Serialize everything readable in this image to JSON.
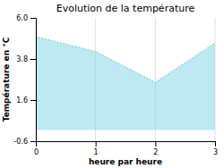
{
  "chart_data": {
    "type": "area",
    "title": "Evolution de la température",
    "x_label": "heure par heure",
    "y_label": "Température en °C",
    "x": [
      0,
      1,
      2,
      3
    ],
    "values": [
      5.0,
      4.2,
      2.55,
      4.65
    ],
    "color": "#7dd4e8",
    "line_style": "dotted",
    "xlim": [
      0,
      3
    ],
    "ylim": [
      -0.6,
      6.0
    ],
    "xticks": [
      0,
      1,
      2,
      3
    ],
    "yticks": [
      -0.6,
      1.6,
      3.8,
      {
        "value": 6,
        "label": "6.0"
      }
    ],
    "grid": "x"
  }
}
